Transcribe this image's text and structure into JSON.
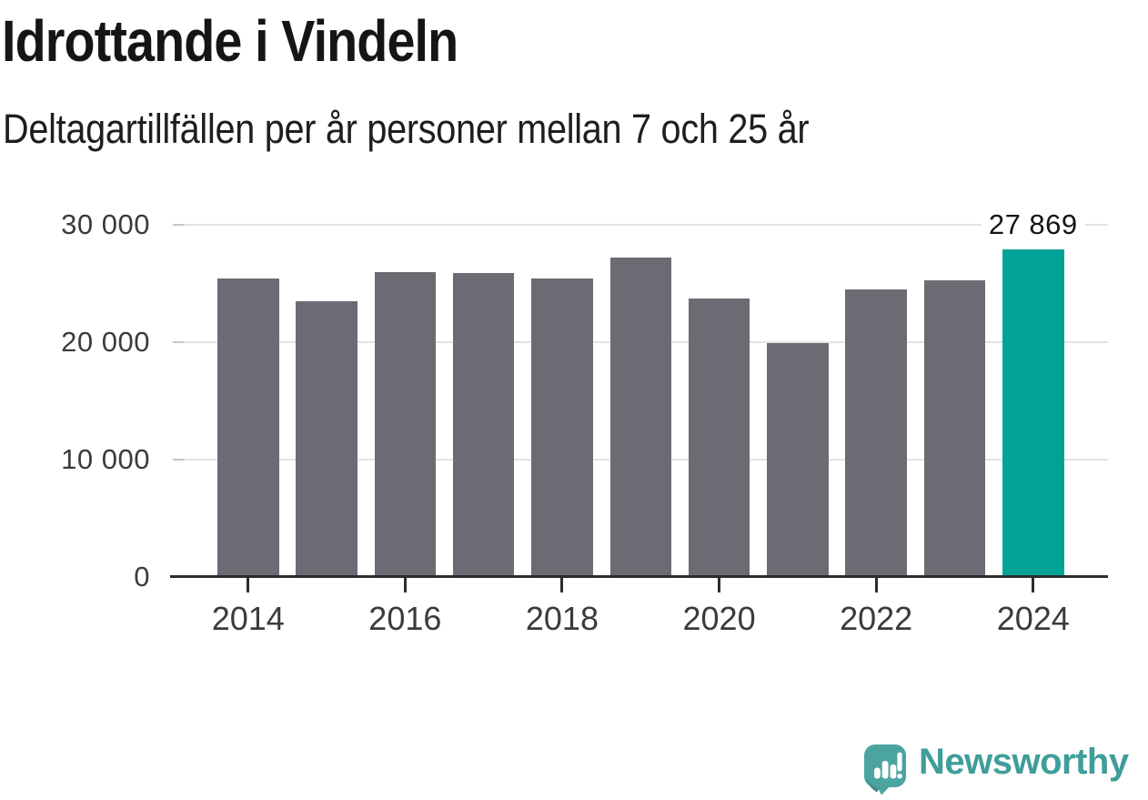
{
  "header": {
    "title": "Idrottande i Vindeln",
    "subtitle": "Deltagartillfällen per år personer mellan 7 och 25 år"
  },
  "chart_data": {
    "type": "bar",
    "title": "Idrottande i Vindeln",
    "subtitle": "Deltagartillfällen per år personer mellan 7 och 25 år",
    "categories": [
      "2014",
      "2015",
      "2016",
      "2017",
      "2018",
      "2019",
      "2020",
      "2021",
      "2022",
      "2023",
      "2024"
    ],
    "values": [
      25400,
      23500,
      26000,
      25900,
      25400,
      27200,
      23700,
      19900,
      24500,
      25300,
      27869
    ],
    "highlight": {
      "index": 10,
      "category": "2024",
      "value": 27869,
      "label": "27 869",
      "color": "#00a396"
    },
    "bar_color": "#6c6b73",
    "ylim": [
      0,
      30000
    ],
    "yticks": [
      {
        "value": 30000,
        "label": "30 000"
      },
      {
        "value": 20000,
        "label": "20 000"
      },
      {
        "value": 10000,
        "label": "10 000"
      },
      {
        "value": 0,
        "label": "0"
      }
    ],
    "xtick_labels": [
      "2014",
      "2016",
      "2018",
      "2020",
      "2022",
      "2024"
    ],
    "grid": "horizontal",
    "legend": "none",
    "gridline_color": "#e3e3e3",
    "tickstub_color": "#c6c6c6",
    "axis_color": "#2d2d2d",
    "label_color": "#3b3b3b"
  },
  "footer": {
    "brand": "Newsworthy",
    "brand_color": "#3f9d9a",
    "logo_color": "#4ba4a0",
    "logo_shade_color": "#3e8e8d",
    "logo_icon": "speech-bubble-bar-chart-exclamation"
  }
}
